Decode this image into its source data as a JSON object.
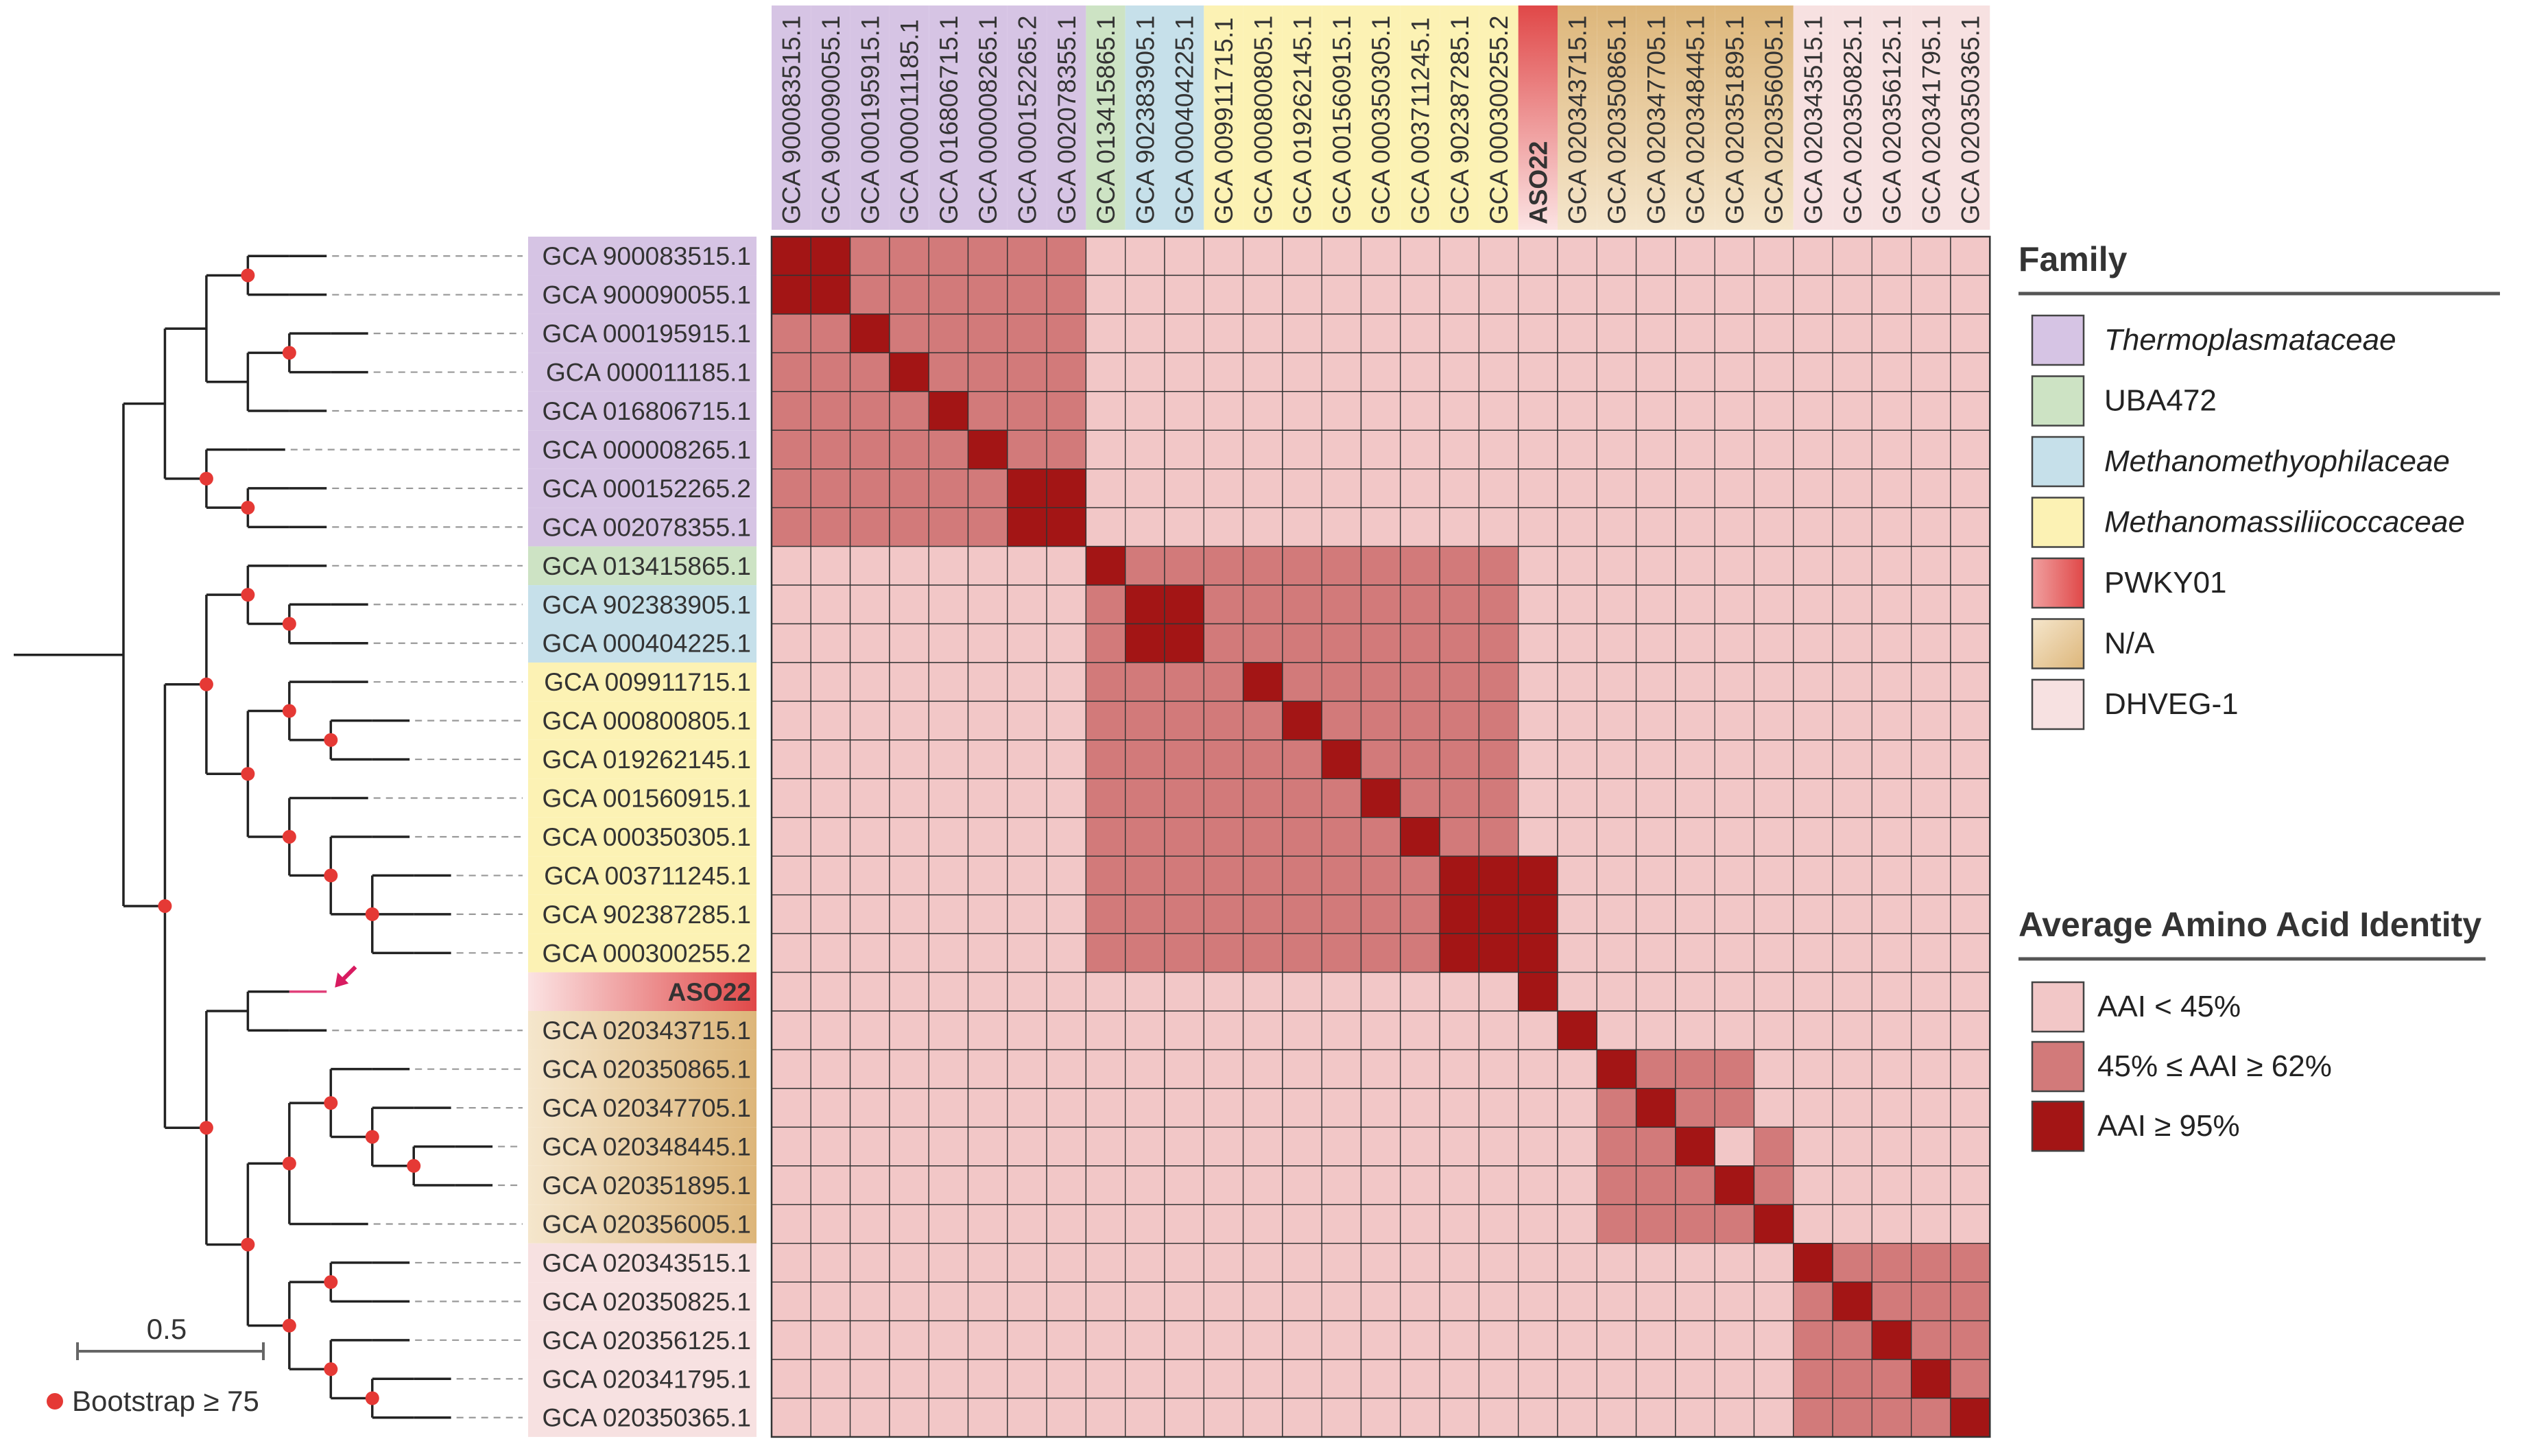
{
  "chart_data": {
    "type": "heatmap",
    "title": "",
    "genomes": [
      {
        "id": "GCA 900083515.1",
        "family": "Thermoplasmataceae"
      },
      {
        "id": "GCA 900090055.1",
        "family": "Thermoplasmataceae"
      },
      {
        "id": "GCA 000195915.1",
        "family": "Thermoplasmataceae"
      },
      {
        "id": "GCA 000011185.1",
        "family": "Thermoplasmataceae"
      },
      {
        "id": "GCA 016806715.1",
        "family": "Thermoplasmataceae"
      },
      {
        "id": "GCA 000008265.1",
        "family": "Thermoplasmataceae"
      },
      {
        "id": "GCA 000152265.2",
        "family": "Thermoplasmataceae"
      },
      {
        "id": "GCA 002078355.1",
        "family": "Thermoplasmataceae"
      },
      {
        "id": "GCA 013415865.1",
        "family": "UBA472"
      },
      {
        "id": "GCA 902383905.1",
        "family": "Methanomethyophilaceae"
      },
      {
        "id": "GCA 000404225.1",
        "family": "Methanomethyophilaceae"
      },
      {
        "id": "GCA 009911715.1",
        "family": "Methanomassiliicoccaceae"
      },
      {
        "id": "GCA 000800805.1",
        "family": "Methanomassiliicoccaceae"
      },
      {
        "id": "GCA 019262145.1",
        "family": "Methanomassiliicoccaceae"
      },
      {
        "id": "GCA 001560915.1",
        "family": "Methanomassiliicoccaceae"
      },
      {
        "id": "GCA 000350305.1",
        "family": "Methanomassiliicoccaceae"
      },
      {
        "id": "GCA 003711245.1",
        "family": "Methanomassiliicoccaceae"
      },
      {
        "id": "GCA 902387285.1",
        "family": "Methanomassiliicoccaceae"
      },
      {
        "id": "GCA 000300255.2",
        "family": "Methanomassiliicoccaceae"
      },
      {
        "id": "ASO22",
        "family": "PWKY01"
      },
      {
        "id": "GCA 020343715.1",
        "family": "N/A"
      },
      {
        "id": "GCA 020350865.1",
        "family": "N/A"
      },
      {
        "id": "GCA 020347705.1",
        "family": "N/A"
      },
      {
        "id": "GCA 020348445.1",
        "family": "N/A"
      },
      {
        "id": "GCA 020351895.1",
        "family": "N/A"
      },
      {
        "id": "GCA 020356005.1",
        "family": "N/A"
      },
      {
        "id": "GCA 020343515.1",
        "family": "DHVEG-1"
      },
      {
        "id": "GCA 020350825.1",
        "family": "DHVEG-1"
      },
      {
        "id": "GCA 020356125.1",
        "family": "DHVEG-1"
      },
      {
        "id": "GCA 020341795.1",
        "family": "DHVEG-1"
      },
      {
        "id": "GCA 020350365.1",
        "family": "DHVEG-1"
      }
    ],
    "aai_levels": [
      "low",
      "mid",
      "high"
    ],
    "matrix": [
      "2211111100000000000000000000000",
      "2211111100000000000000000000000",
      "1121111100000000000000000000000",
      "1112111100000000000000000000000",
      "1111211100000000000000000000000",
      "1111121100000000000000000000000",
      "1111112200000000000000000000000",
      "1111112200000000000000000000000",
      "0000000021111111111000000000000",
      "0000000012211111111000000000000",
      "0000000012211111111000000000000",
      "0000000011112111111000000000000",
      "0000000011111211111000000000000",
      "0000000011111121111000000000000",
      "0000000011111112111000000000000",
      "0000000011111111211000000000000",
      "0000000011111111122200000000000",
      "0000000011111111122200000000000",
      "0000000011111111122200000000000",
      "0000000000000000000200000000000",
      "0000000000000000000020000000000",
      "0000000000000000000002111000000",
      "0000000000000000000001211000000",
      "0000000000000000000001120100000",
      "0000000000000000000001112100000",
      "0000000000000000000001111200000",
      "0000000000000000000000000021111",
      "0000000000000000000000000012111",
      "0000000000000000000000000011211",
      "0000000000000000000000000011121",
      "0000000000000000000000000011112"
    ],
    "tree": {
      "children": [
        {
          "children": [
            {
              "children": [
                {
                  "bootstrap": true,
                  "leaves": [
                    0,
                    1
                  ]
                },
                {
                  "children": [
                    {
                      "bootstrap": true,
                      "leaves": [
                        2,
                        3
                      ]
                    },
                    {
                      "leaf": 4
                    }
                  ]
                }
              ]
            },
            {
              "children": [
                {
                  "leaf": 5
                },
                {
                  "bootstrap": true,
                  "leaves": [
                    6,
                    7
                  ]
                }
              ],
              "bootstrap": true
            }
          ]
        },
        {
          "bootstrap": true,
          "children": [
            {
              "bootstrap": true,
              "children": [
                {
                  "bootstrap": true,
                  "children": [
                    {
                      "leaf": 8
                    },
                    {
                      "bootstrap": true,
                      "leaves": [
                        9,
                        10
                      ]
                    }
                  ]
                },
                {
                  "bootstrap": true,
                  "children": [
                    {
                      "bootstrap": true,
                      "children": [
                        {
                          "leaf": 11
                        },
                        {
                          "bootstrap": true,
                          "leaves": [
                            12,
                            13
                          ]
                        }
                      ]
                    },
                    {
                      "bootstrap": true,
                      "children": [
                        {
                          "leaf": 14
                        },
                        {
                          "bootstrap": true,
                          "children": [
                            {
                              "leaf": 15
                            },
                            {
                              "bootstrap": true,
                              "leaves": [
                                16,
                                17,
                                18
                              ]
                            }
                          ]
                        }
                      ]
                    }
                  ]
                }
              ]
            },
            {
              "bootstrap": true,
              "children": [
                {
                  "children": [
                    {
                      "leaf": 19,
                      "highlight": true
                    },
                    {
                      "leaf": 20
                    }
                  ]
                },
                {
                  "bootstrap": true,
                  "children": [
                    {
                      "bootstrap": true,
                      "children": [
                        {
                          "bootstrap": true,
                          "children": [
                            {
                              "leaf": 21
                            },
                            {
                              "bootstrap": true,
                              "children": [
                                {
                                  "leaf": 22
                                },
                                {
                                  "bootstrap": true,
                                  "leaves": [
                                    23,
                                    24
                                  ]
                                }
                              ]
                            }
                          ]
                        },
                        {
                          "leaf": 25
                        }
                      ]
                    },
                    {
                      "bootstrap": true,
                      "children": [
                        {
                          "bootstrap": true,
                          "leaves": [
                            26,
                            27
                          ]
                        },
                        {
                          "bootstrap": true,
                          "children": [
                            {
                              "leaf": 28
                            },
                            {
                              "bootstrap": true,
                              "leaves": [
                                29,
                                30
                              ]
                            }
                          ]
                        }
                      ]
                    }
                  ]
                }
              ]
            }
          ]
        }
      ]
    },
    "scale_bar_label": "0.5",
    "bootstrap_label": "Bootstrap ≥ 75",
    "legend_placement": "right"
  },
  "legend": {
    "family_title": "Family",
    "families": [
      {
        "name": "Thermoplasmataceae",
        "italic": true,
        "color": "#D6C4E4"
      },
      {
        "name": "UBA472",
        "italic": false,
        "color": "#CDE3C4"
      },
      {
        "name": "Methanomethyophilaceae",
        "italic": true,
        "color": "#C6E0EA"
      },
      {
        "name": "Methanomassiliicoccaceae",
        "italic": true,
        "color": "#FCF2B4"
      },
      {
        "name": "PWKY01",
        "italic": false,
        "color": "#E36060",
        "gradient": true
      },
      {
        "name": "N/A",
        "italic": false,
        "color": "#E6C99A",
        "gradient": true
      },
      {
        "name": "DHVEG-1",
        "italic": false,
        "color": "#F7E1E1"
      }
    ],
    "aai_title": "Average Amino Acid Identity",
    "aai_items": [
      {
        "label": "AAI < 45%",
        "color": "#F2C7C7"
      },
      {
        "label": "45% ≤ AAI ≥ 62%",
        "color": "#D27A7A"
      },
      {
        "label": "AAI ≥ 95%",
        "color": "#A31515"
      }
    ]
  },
  "colors": {
    "leaf_highlight_branch": "#E0407A",
    "arrow": "#D81B60",
    "bootstrap_dot": "#E53935",
    "tree_line": "#222222",
    "grid_line": "#333333"
  }
}
